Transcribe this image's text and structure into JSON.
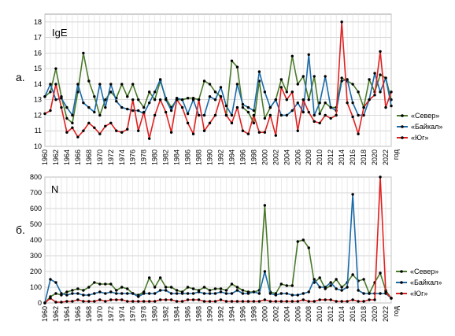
{
  "chart_data": [
    {
      "panel": "а.",
      "type": "line",
      "title": "IgE",
      "xlabel": "год",
      "ylabel": "",
      "ylim": [
        10,
        18.5
      ],
      "yticks": [
        10,
        11,
        12,
        13,
        14,
        15,
        16,
        17,
        18
      ],
      "xtick_labels": [
        "1960",
        "1962",
        "1964",
        "1966",
        "1968",
        "1970",
        "1972",
        "1974",
        "1976",
        "1978",
        "1980",
        "1982",
        "1984",
        "1986",
        "1988",
        "1990",
        "1992",
        "1994",
        "1996",
        "1998",
        "2000",
        "2002",
        "2004",
        "2006",
        "2008",
        "2010",
        "2012",
        "2014",
        "2016",
        "2018",
        "2020",
        "2022"
      ],
      "x": [
        1960,
        1961,
        1962,
        1963,
        1964,
        1965,
        1966,
        1967,
        1968,
        1969,
        1970,
        1971,
        1972,
        1973,
        1974,
        1975,
        1976,
        1977,
        1978,
        1979,
        1980,
        1981,
        1982,
        1983,
        1984,
        1985,
        1986,
        1987,
        1988,
        1989,
        1990,
        1991,
        1992,
        1993,
        1994,
        1995,
        1996,
        1997,
        1998,
        1999,
        2000,
        2001,
        2002,
        2003,
        2004,
        2005,
        2006,
        2007,
        2008,
        2009,
        2010,
        2011,
        2012,
        2013,
        2014,
        2015,
        2016,
        2017,
        2018,
        2019,
        2020,
        2021,
        2022,
        2023
      ],
      "grid": true,
      "legend_position": "right",
      "series": [
        {
          "name": "«Север»",
          "color": "#4a7a2a",
          "values": [
            13.2,
            13.5,
            15.0,
            13.2,
            11.8,
            11.5,
            13.5,
            16.0,
            14.2,
            13.2,
            12.0,
            13.0,
            13.5,
            13.1,
            14.0,
            13.2,
            14.0,
            13.0,
            12.5,
            13.5,
            13.0,
            14.2,
            13.1,
            12.5,
            13.0,
            13.0,
            13.1,
            13.1,
            13.0,
            14.2,
            14.0,
            13.5,
            13.2,
            12.0,
            15.5,
            15.1,
            12.5,
            12.2,
            11.5,
            14.2,
            11.8,
            12.5,
            13.0,
            14.3,
            13.5,
            15.8,
            14.0,
            14.5,
            13.0,
            14.5,
            12.1,
            12.8,
            12.5,
            12.5,
            14.4,
            14.2,
            14.0,
            13.5,
            12.5,
            14.3,
            13.5,
            14.6,
            14.4,
            13.0
          ]
        },
        {
          "name": "«Байкал»",
          "color": "#1a6aa8",
          "values": [
            13.2,
            14.0,
            13.0,
            13.1,
            12.5,
            12.0,
            14.0,
            12.8,
            12.5,
            12.2,
            14.0,
            12.5,
            14.0,
            12.9,
            12.5,
            12.4,
            12.3,
            12.3,
            12.1,
            12.8,
            13.5,
            14.3,
            13.0,
            12.3,
            13.1,
            13.0,
            12.1,
            13.0,
            12.0,
            12.0,
            13.2,
            13.0,
            13.8,
            12.6,
            12.0,
            14.0,
            12.7,
            12.5,
            12.3,
            14.8,
            13.5,
            12.5,
            13.0,
            12.0,
            12.0,
            12.3,
            12.8,
            12.2,
            15.9,
            12.0,
            12.8,
            14.5,
            12.5,
            12.3,
            14.2,
            14.3,
            12.8,
            12.0,
            12.0,
            13.0,
            14.7,
            13.5,
            14.4,
            12.6
          ]
        },
        {
          "name": "«Юг»",
          "color": "#e02020",
          "values": [
            12.1,
            12.3,
            14.0,
            12.5,
            10.9,
            11.2,
            10.6,
            11.0,
            11.5,
            11.2,
            10.8,
            11.3,
            11.5,
            11.0,
            10.9,
            11.1,
            13.0,
            11.0,
            12.2,
            10.5,
            12.0,
            13.0,
            12.2,
            10.9,
            13.0,
            12.5,
            11.5,
            10.8,
            13.0,
            11.0,
            11.5,
            12.0,
            13.2,
            12.0,
            11.5,
            12.5,
            11.0,
            10.8,
            12.0,
            10.9,
            10.9,
            12.0,
            10.7,
            13.8,
            13.0,
            13.5,
            11.0,
            13.0,
            12.2,
            11.6,
            11.5,
            12.0,
            11.8,
            12.0,
            18.0,
            12.8,
            11.9,
            10.8,
            12.5,
            13.0,
            13.3,
            16.1,
            12.5,
            13.5
          ]
        }
      ]
    },
    {
      "panel": "б.",
      "type": "line",
      "title": "N",
      "xlabel": "год",
      "ylabel": "",
      "ylim": [
        0,
        800
      ],
      "yticks": [
        0,
        100,
        200,
        300,
        400,
        500,
        600,
        700,
        800
      ],
      "xtick_labels": [
        "1960",
        "1962",
        "1964",
        "1966",
        "1968",
        "1970",
        "1972",
        "1974",
        "1976",
        "1978",
        "1980",
        "1982",
        "1984",
        "1986",
        "1988",
        "1990",
        "1992",
        "1994",
        "1996",
        "1998",
        "2000",
        "2002",
        "2004",
        "2006",
        "2008",
        "2010",
        "2012",
        "2014",
        "2016",
        "2018",
        "2020",
        "2022"
      ],
      "x": [
        1960,
        1961,
        1962,
        1963,
        1964,
        1965,
        1966,
        1967,
        1968,
        1969,
        1970,
        1971,
        1972,
        1973,
        1974,
        1975,
        1976,
        1977,
        1978,
        1979,
        1980,
        1981,
        1982,
        1983,
        1984,
        1985,
        1986,
        1987,
        1988,
        1989,
        1990,
        1991,
        1992,
        1993,
        1994,
        1995,
        1996,
        1997,
        1998,
        1999,
        2000,
        2001,
        2002,
        2003,
        2004,
        2005,
        2006,
        2007,
        2008,
        2009,
        2010,
        2011,
        2012,
        2013,
        2014,
        2015,
        2016,
        2017,
        2018,
        2019,
        2020,
        2021,
        2022,
        2023
      ],
      "grid": true,
      "legend_position": "right",
      "series": [
        {
          "name": "«Север»",
          "color": "#4a7a2a",
          "values": [
            0,
            40,
            60,
            50,
            70,
            80,
            90,
            80,
            100,
            130,
            120,
            120,
            120,
            80,
            100,
            90,
            60,
            50,
            70,
            160,
            100,
            160,
            100,
            100,
            80,
            70,
            100,
            90,
            80,
            100,
            80,
            90,
            90,
            80,
            120,
            100,
            80,
            70,
            70,
            80,
            620,
            70,
            60,
            120,
            110,
            110,
            390,
            400,
            350,
            130,
            160,
            90,
            110,
            150,
            100,
            130,
            180,
            140,
            150,
            60,
            130,
            190,
            80,
            30
          ]
        },
        {
          "name": "«Байкал»",
          "color": "#1a6aa8",
          "values": [
            0,
            150,
            130,
            60,
            50,
            60,
            60,
            50,
            50,
            60,
            70,
            60,
            70,
            60,
            60,
            60,
            60,
            40,
            60,
            60,
            60,
            80,
            80,
            60,
            60,
            60,
            60,
            60,
            70,
            60,
            60,
            60,
            70,
            60,
            60,
            80,
            60,
            60,
            70,
            60,
            200,
            60,
            50,
            60,
            60,
            50,
            50,
            60,
            70,
            150,
            100,
            100,
            130,
            90,
            80,
            100,
            690,
            80,
            60,
            60,
            60,
            60,
            60,
            30
          ]
        },
        {
          "name": "«Юг»",
          "color": "#e02020",
          "values": [
            0,
            30,
            5,
            5,
            10,
            10,
            20,
            10,
            10,
            10,
            20,
            10,
            20,
            20,
            20,
            10,
            10,
            10,
            10,
            10,
            10,
            20,
            20,
            20,
            10,
            10,
            20,
            20,
            20,
            10,
            10,
            10,
            20,
            10,
            10,
            10,
            10,
            10,
            10,
            10,
            20,
            10,
            10,
            10,
            10,
            10,
            10,
            20,
            10,
            10,
            20,
            20,
            20,
            10,
            10,
            10,
            20,
            10,
            10,
            20,
            20,
            800,
            70,
            30
          ]
        }
      ]
    }
  ]
}
